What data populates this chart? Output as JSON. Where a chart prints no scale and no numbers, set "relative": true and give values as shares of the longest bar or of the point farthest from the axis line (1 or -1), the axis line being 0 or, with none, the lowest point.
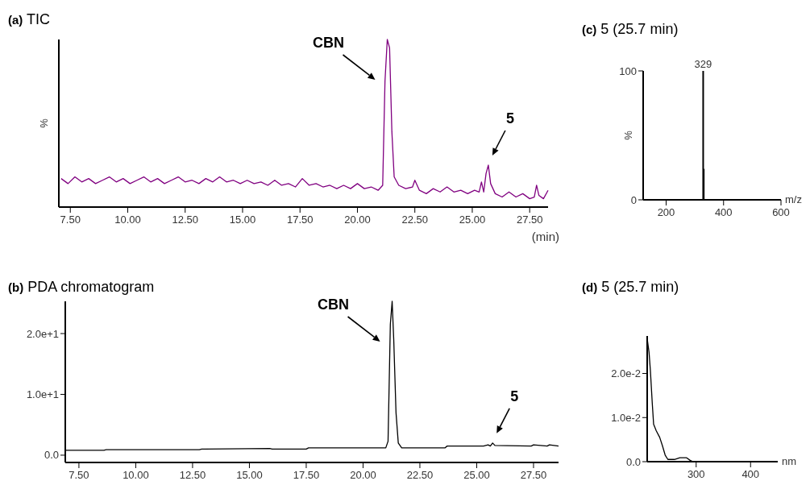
{
  "chart_data": [
    {
      "type": "line",
      "title": "(a) TIC",
      "ylabel": "%",
      "xlabel": "(min)",
      "relative": true,
      "xlim": [
        7.0,
        28.3
      ],
      "xticks": [
        {
          "value": 7.5,
          "label": "7.50"
        },
        {
          "value": 10,
          "label": "10.00"
        },
        {
          "value": 12.5,
          "label": "12.50"
        },
        {
          "value": 15,
          "label": "15.00"
        },
        {
          "value": 17.5,
          "label": "17.50"
        },
        {
          "value": 20,
          "label": "20.00"
        },
        {
          "value": 22.5,
          "label": "22.50"
        },
        {
          "value": 25,
          "label": "25.00"
        },
        {
          "value": 27.5,
          "label": "27.50"
        }
      ],
      "series": [
        {
          "color": "#800080",
          "x": [
            7.1,
            7.4,
            7.7,
            8.0,
            8.3,
            8.6,
            8.9,
            9.2,
            9.5,
            9.8,
            10.1,
            10.4,
            10.7,
            11.0,
            11.3,
            11.6,
            11.9,
            12.2,
            12.5,
            12.8,
            13.1,
            13.4,
            13.7,
            14.0,
            14.3,
            14.6,
            14.9,
            15.2,
            15.5,
            15.8,
            16.1,
            16.4,
            16.7,
            17.0,
            17.3,
            17.6,
            17.9,
            18.2,
            18.5,
            18.8,
            19.1,
            19.4,
            19.7,
            20.0,
            20.3,
            20.6,
            20.9,
            21.1,
            21.2,
            21.3,
            21.4,
            21.5,
            21.6,
            21.8,
            22.1,
            22.4,
            22.5,
            22.7,
            23.0,
            23.3,
            23.6,
            23.9,
            24.2,
            24.5,
            24.8,
            25.1,
            25.3,
            25.4,
            25.5,
            25.6,
            25.7,
            25.8,
            26.0,
            26.3,
            26.6,
            26.9,
            27.2,
            27.5,
            27.7,
            27.8,
            27.9,
            28.1,
            28.3
          ],
          "values": [
            0.17,
            0.14,
            0.18,
            0.15,
            0.17,
            0.14,
            0.16,
            0.18,
            0.15,
            0.17,
            0.14,
            0.16,
            0.18,
            0.15,
            0.17,
            0.14,
            0.16,
            0.18,
            0.15,
            0.16,
            0.14,
            0.17,
            0.15,
            0.18,
            0.15,
            0.16,
            0.14,
            0.16,
            0.14,
            0.15,
            0.13,
            0.16,
            0.13,
            0.14,
            0.12,
            0.17,
            0.13,
            0.14,
            0.12,
            0.13,
            0.11,
            0.13,
            0.11,
            0.14,
            0.11,
            0.12,
            0.1,
            0.13,
            0.75,
            1.0,
            0.95,
            0.45,
            0.18,
            0.13,
            0.11,
            0.12,
            0.16,
            0.1,
            0.08,
            0.11,
            0.09,
            0.12,
            0.09,
            0.1,
            0.08,
            0.1,
            0.09,
            0.15,
            0.09,
            0.2,
            0.25,
            0.14,
            0.08,
            0.06,
            0.09,
            0.06,
            0.08,
            0.05,
            0.06,
            0.13,
            0.07,
            0.05,
            0.1
          ]
        }
      ],
      "annotations": [
        {
          "text": "CBN",
          "x": 21.3,
          "y": 1.0
        },
        {
          "text": "5",
          "x": 25.7,
          "y": 0.25
        }
      ]
    },
    {
      "type": "line",
      "title": "(b) PDA chromatogram",
      "xlim": [
        6.9,
        28.6
      ],
      "ylim": [
        -1.2,
        25.3
      ],
      "xticks": [
        {
          "value": 7.5,
          "label": "7.50"
        },
        {
          "value": 10,
          "label": "10.00"
        },
        {
          "value": 12.5,
          "label": "12.50"
        },
        {
          "value": 15,
          "label": "15.00"
        },
        {
          "value": 17.5,
          "label": "17.50"
        },
        {
          "value": 20,
          "label": "20.00"
        },
        {
          "value": 22.5,
          "label": "22.50"
        },
        {
          "value": 25,
          "label": "25.00"
        },
        {
          "value": 27.5,
          "label": "27.50"
        }
      ],
      "yticks": [
        {
          "value": 0,
          "label": "0.0"
        },
        {
          "value": 10,
          "label": "1.0e+1"
        },
        {
          "value": 20,
          "label": "2.0e+1"
        }
      ],
      "series": [
        {
          "color": "#000000",
          "x": [
            6.9,
            8.6,
            8.7,
            12.8,
            12.9,
            15.9,
            16.0,
            17.5,
            17.6,
            21.0,
            21.1,
            21.2,
            21.28,
            21.35,
            21.45,
            21.55,
            21.7,
            23.6,
            23.7,
            25.3,
            25.5,
            25.6,
            25.7,
            25.8,
            27.4,
            27.5,
            27.8,
            28.1,
            28.2,
            28.6
          ],
          "values": [
            0.8,
            0.8,
            0.9,
            0.9,
            1.0,
            1.1,
            1.0,
            1.0,
            1.2,
            1.2,
            2.3,
            21.5,
            25.3,
            19.0,
            7.0,
            2.0,
            1.2,
            1.2,
            1.5,
            1.5,
            1.7,
            1.5,
            2.0,
            1.6,
            1.5,
            1.7,
            1.6,
            1.5,
            1.7,
            1.5
          ]
        }
      ],
      "annotations": [
        {
          "text": "CBN",
          "x": 21.28,
          "y": 25.3
        },
        {
          "text": "5",
          "x": 25.7,
          "y": 2.0
        }
      ]
    },
    {
      "type": "bar",
      "title": "(c) 5 (25.7 min)",
      "ylabel": "%",
      "xlabel": "m/z",
      "xlim": [
        120,
        600
      ],
      "ylim": [
        0,
        100
      ],
      "xticks": [
        200,
        400,
        600
      ],
      "yticks": [
        0,
        100
      ],
      "series": [
        {
          "color": "#000000",
          "x": [
            329,
            331
          ],
          "values": [
            100,
            24
          ]
        }
      ],
      "annotations": [
        {
          "text": "329",
          "x": 329,
          "y": 100
        }
      ]
    },
    {
      "type": "line",
      "title": "(d) 5 (25.7 min)",
      "xlabel": "nm",
      "xlim": [
        210,
        450
      ],
      "ylim": [
        0,
        0.0285
      ],
      "xticks": [
        300,
        400
      ],
      "yticks": [
        {
          "value": 0,
          "label": "0.0"
        },
        {
          "value": 0.01,
          "label": "1.0e-2"
        },
        {
          "value": 0.02,
          "label": "2.0e-2"
        }
      ],
      "series": [
        {
          "color": "#000000",
          "x": [
            210,
            213.4,
            215.9,
            219.3,
            221.8,
            226.7,
            233,
            238,
            243,
            248,
            260,
            270,
            282,
            289,
            294,
            450
          ],
          "values": [
            0.0279,
            0.0248,
            0.0206,
            0.0133,
            0.0085,
            0.007,
            0.0055,
            0.0036,
            0.0015,
            0.0005,
            0.0005,
            0.0009,
            0.0009,
            0.0003,
            0,
            0
          ]
        }
      ]
    }
  ]
}
